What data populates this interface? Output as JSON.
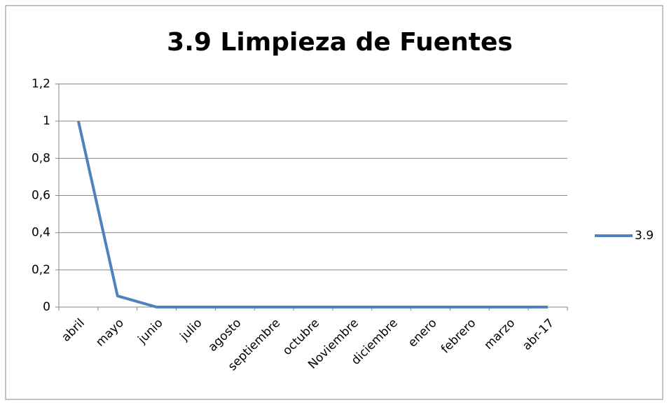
{
  "chart_data": {
    "type": "line",
    "title": "3.9 Limpieza de Fuentes",
    "categories": [
      "abril",
      "mayo",
      "junio",
      "julio",
      "agosto",
      "septiembre",
      "octubre",
      "Noviembre",
      "diciembre",
      "enero",
      "febrero",
      "marzo",
      "abr-17"
    ],
    "series": [
      {
        "name": "3.9",
        "color": "#4f81bd",
        "values": [
          1,
          0.06,
          0,
          0,
          0,
          0,
          0,
          0,
          0,
          0,
          0,
          0,
          0
        ]
      }
    ],
    "ylim": [
      0,
      1.2
    ],
    "yticks": [
      0,
      {
        "value": 0.2,
        "label": "0,2"
      },
      {
        "value": 0.4,
        "label": "0,4"
      },
      {
        "value": 0.6,
        "label": "0,6"
      },
      {
        "value": 0.8,
        "label": "0,8"
      },
      1,
      {
        "value": 1.2,
        "label": "1,2"
      }
    ],
    "grid": true,
    "legend": "right"
  }
}
